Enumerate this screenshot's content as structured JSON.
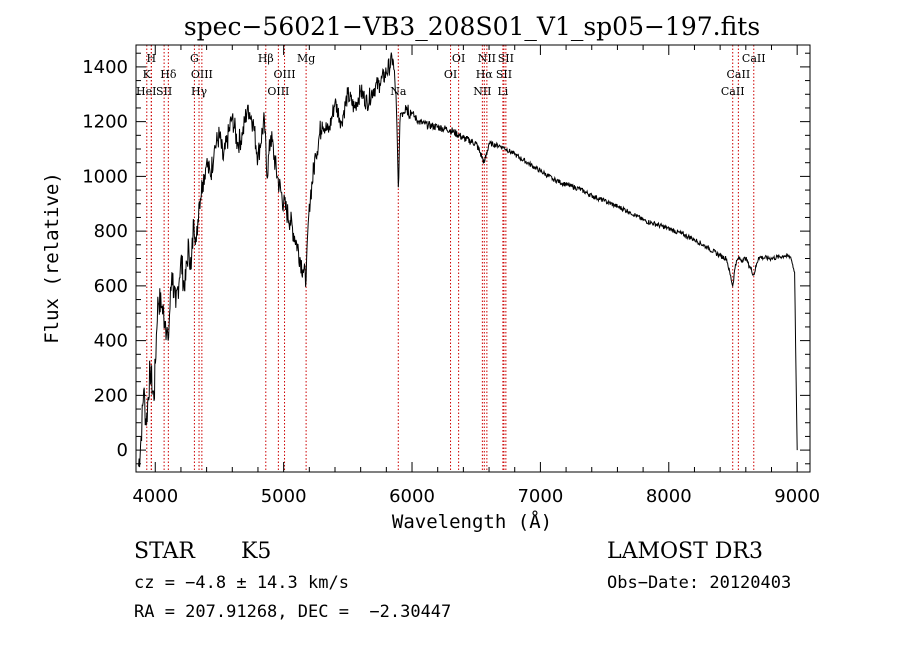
{
  "chart_data": {
    "type": "line",
    "title": "spec−56021−VB3_208S01_V1_sp05−197.fits",
    "xlabel": "Wavelength (Å)",
    "ylabel": "Flux (relative)",
    "xlim": [
      3850,
      9100
    ],
    "ylim": [
      -80,
      1480
    ],
    "xticks": [
      4000,
      5000,
      6000,
      7000,
      8000,
      9000
    ],
    "yticks": [
      0,
      200,
      400,
      600,
      800,
      1000,
      1200,
      1400
    ],
    "grid": false,
    "series": [
      {
        "name": "flux",
        "x": [
          3870,
          3890,
          3910,
          3930,
          3960,
          3990,
          4020,
          4050,
          4080,
          4100,
          4130,
          4160,
          4200,
          4230,
          4260,
          4280,
          4300,
          4320,
          4340,
          4370,
          4400,
          4430,
          4460,
          4500,
          4530,
          4560,
          4600,
          4640,
          4680,
          4720,
          4760,
          4800,
          4850,
          4870,
          4900,
          4950,
          5000,
          5050,
          5100,
          5150,
          5175,
          5200,
          5250,
          5300,
          5350,
          5400,
          5450,
          5500,
          5550,
          5600,
          5650,
          5700,
          5750,
          5800,
          5850,
          5875,
          5893,
          5910,
          5950,
          6000,
          6050,
          6100,
          6200,
          6300,
          6400,
          6500,
          6563,
          6600,
          6700,
          6800,
          6900,
          7000,
          7100,
          7200,
          7300,
          7400,
          7500,
          7600,
          7700,
          7800,
          7900,
          8000,
          8100,
          8200,
          8300,
          8400,
          8450,
          8498,
          8520,
          8542,
          8570,
          8600,
          8662,
          8700,
          8800,
          8900,
          8950,
          8980,
          9000
        ],
        "y": [
          -60,
          50,
          220,
          90,
          300,
          180,
          560,
          520,
          470,
          400,
          650,
          520,
          700,
          580,
          760,
          660,
          840,
          760,
          900,
          980,
          1050,
          1000,
          1100,
          1150,
          1060,
          1130,
          1220,
          1120,
          1150,
          1260,
          1200,
          1070,
          1210,
          1000,
          1150,
          1000,
          900,
          840,
          760,
          660,
          620,
          900,
          1080,
          1200,
          1160,
          1270,
          1200,
          1300,
          1250,
          1310,
          1270,
          1320,
          1340,
          1380,
          1430,
          1300,
          960,
          1230,
          1260,
          1230,
          1200,
          1190,
          1180,
          1170,
          1140,
          1120,
          1050,
          1120,
          1110,
          1080,
          1050,
          1020,
          990,
          970,
          955,
          930,
          910,
          890,
          870,
          840,
          825,
          810,
          790,
          770,
          740,
          710,
          700,
          600,
          680,
          700,
          695,
          700,
          640,
          705,
          700,
          710,
          705,
          650,
          0
        ]
      }
    ],
    "lines": [
      {
        "label": "K",
        "x": 3934
      },
      {
        "label": "H",
        "x": 3969
      },
      {
        "label": "HeI",
        "x": 3970
      },
      {
        "label": "SII",
        "x": 4069
      },
      {
        "label": "Hδ",
        "x": 4102
      },
      {
        "label": "G",
        "x": 4305
      },
      {
        "label": "Hγ",
        "x": 4341
      },
      {
        "label": "OIII",
        "x": 4363
      },
      {
        "label": "Hβ",
        "x": 4861
      },
      {
        "label": "OIII",
        "x": 4959
      },
      {
        "label": "OIII",
        "x": 5007
      },
      {
        "label": "Mg",
        "x": 5175
      },
      {
        "label": "Na",
        "x": 5893
      },
      {
        "label": "OI",
        "x": 6300
      },
      {
        "label": "OI",
        "x": 6363
      },
      {
        "label": "NII",
        "x": 6548
      },
      {
        "label": "Hα",
        "x": 6563
      },
      {
        "label": "NII",
        "x": 6583
      },
      {
        "label": "Li",
        "x": 6708
      },
      {
        "label": "SII",
        "x": 6716
      },
      {
        "label": "SII",
        "x": 6731
      },
      {
        "label": "CaII",
        "x": 8498
      },
      {
        "label": "CaII",
        "x": 8542
      },
      {
        "label": "CaII",
        "x": 8662
      }
    ],
    "line_labels": [
      {
        "text": "H",
        "x": 3969,
        "row": 1
      },
      {
        "text": "K",
        "x": 3934,
        "row": 2
      },
      {
        "text": "HeI",
        "x": 3930,
        "row": 3
      },
      {
        "text": "Hδ",
        "x": 4102,
        "row": 2
      },
      {
        "text": "SII",
        "x": 4069,
        "row": 3
      },
      {
        "text": "G",
        "x": 4305,
        "row": 1
      },
      {
        "text": "OIII",
        "x": 4363,
        "row": 2
      },
      {
        "text": "Hγ",
        "x": 4341,
        "row": 3
      },
      {
        "text": "Hβ",
        "x": 4861,
        "row": 1
      },
      {
        "text": "OIII",
        "x": 5007,
        "row": 2
      },
      {
        "text": "OIII",
        "x": 4959,
        "row": 3
      },
      {
        "text": "Mg",
        "x": 5175,
        "row": 1
      },
      {
        "text": "Na",
        "x": 5893,
        "row": 3
      },
      {
        "text": "OI",
        "x": 6363,
        "row": 1
      },
      {
        "text": "OI",
        "x": 6300,
        "row": 2
      },
      {
        "text": "NII",
        "x": 6583,
        "row": 1
      },
      {
        "text": "SII",
        "x": 6731,
        "row": 1
      },
      {
        "text": "Hα",
        "x": 6563,
        "row": 2
      },
      {
        "text": "SII",
        "x": 6716,
        "row": 2
      },
      {
        "text": "NII",
        "x": 6548,
        "row": 3
      },
      {
        "text": "Li",
        "x": 6708,
        "row": 3
      },
      {
        "text": "CaII",
        "x": 8662,
        "row": 1
      },
      {
        "text": "CaII",
        "x": 8542,
        "row": 2
      },
      {
        "text": "CaII",
        "x": 8498,
        "row": 3
      }
    ]
  },
  "info": {
    "object_class": "STAR",
    "subclass": "K5",
    "survey": "LAMOST DR3",
    "redshift": "cz = −4.8 ± 14.3 km/s",
    "obs_date": "Obs−Date: 20120403",
    "coords": "RA = 207.91268, DEC =  −2.30447"
  },
  "colors": {
    "spectrum": "#000000",
    "line_markers": "#cc0000",
    "axes": "#000000"
  }
}
